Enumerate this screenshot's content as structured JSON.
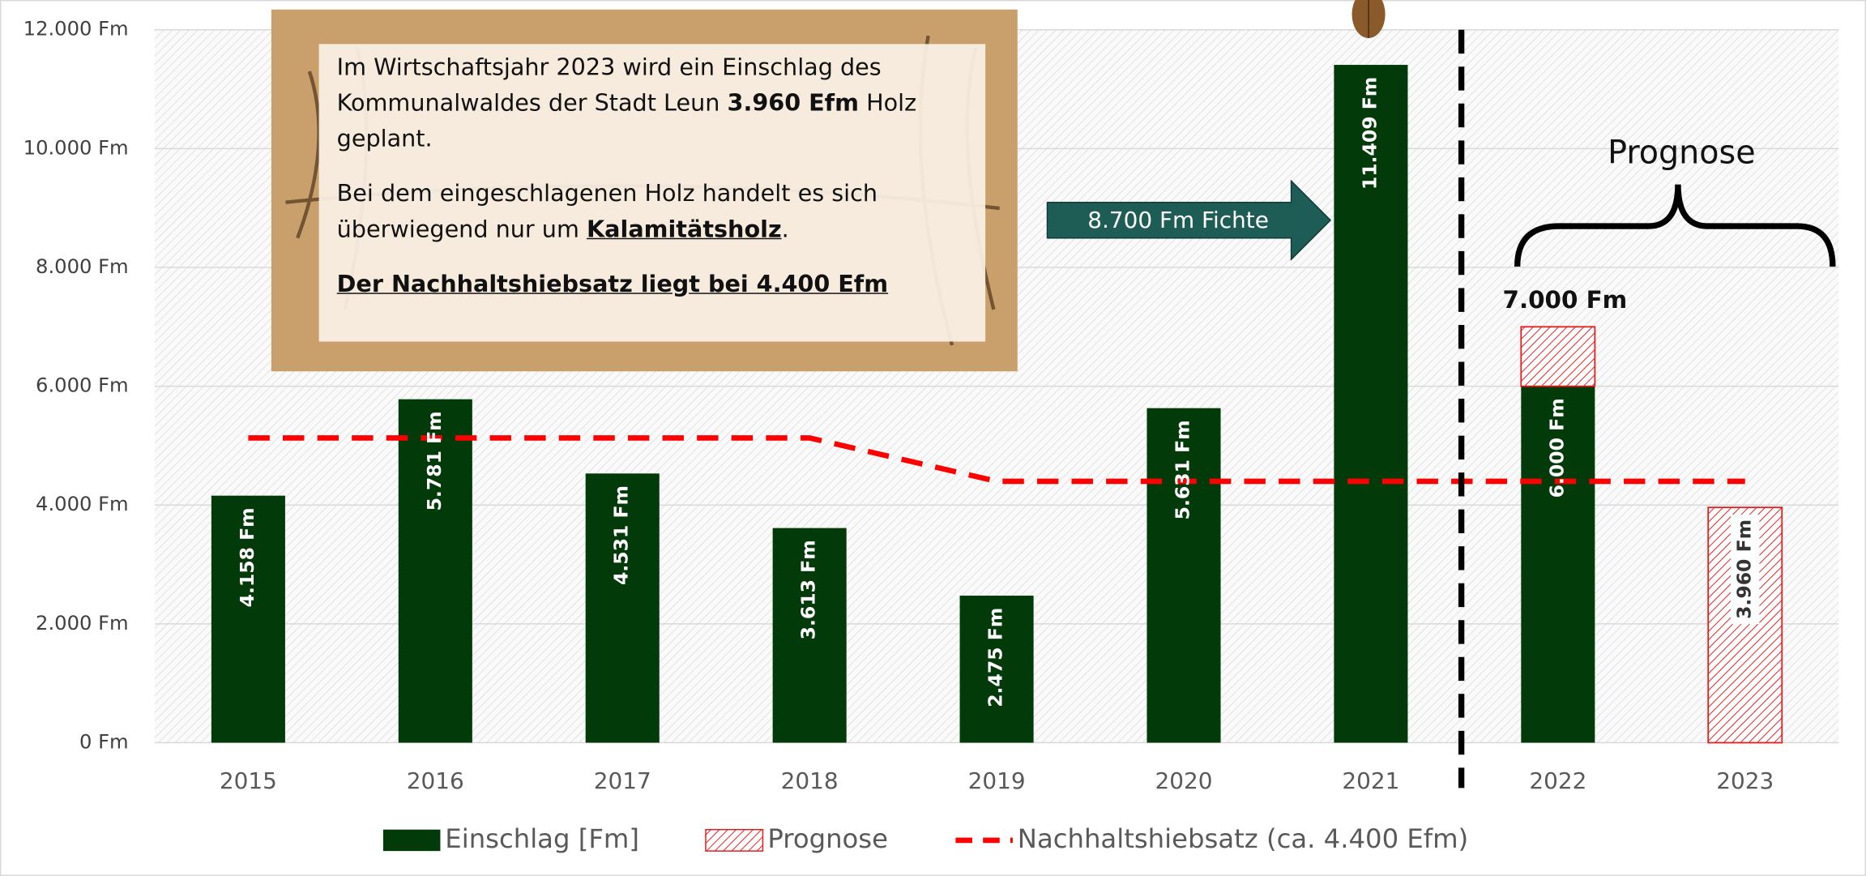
{
  "chart_data": {
    "type": "bar",
    "categories": [
      "2015",
      "2016",
      "2017",
      "2018",
      "2019",
      "2020",
      "2021",
      "2022",
      "2023"
    ],
    "series": [
      {
        "name": "Einschlag [Fm]",
        "type": "bar",
        "color": "#033a0a",
        "values": [
          4158,
          5781,
          4531,
          3613,
          2475,
          5631,
          11409,
          6000,
          null
        ],
        "value_labels": [
          "4.158 Fm",
          "5.781 Fm",
          "4.531 Fm",
          "3.613 Fm",
          "2.475 Fm",
          "5.631 Fm",
          "11.409 Fm",
          "6.000 Fm",
          null
        ]
      },
      {
        "name": "Prognose",
        "type": "bar",
        "color": "#e31b1b",
        "hatched": true,
        "values": [
          null,
          null,
          null,
          null,
          null,
          null,
          null,
          1000,
          3960
        ],
        "value_labels": [
          null,
          null,
          null,
          null,
          null,
          null,
          null,
          null,
          "3.960 Fm"
        ]
      },
      {
        "name": "Nachhaltshiebsatz (ca. 4.400 Efm)",
        "type": "line",
        "color": "#ff0000",
        "dashed": true,
        "values": [
          5130,
          5130,
          5130,
          5130,
          4400,
          4400,
          4400,
          4400,
          4400
        ]
      }
    ],
    "stacked": true,
    "ylim": [
      0,
      12000
    ],
    "yticks": [
      {
        "value": 0,
        "label": "0 Fm"
      },
      {
        "value": 2000,
        "label": "2.000 Fm"
      },
      {
        "value": 4000,
        "label": "4.000 Fm"
      },
      {
        "value": 6000,
        "label": "6.000 Fm"
      },
      {
        "value": 8000,
        "label": "8.000 Fm"
      },
      {
        "value": 10000,
        "label": "10.000 Fm"
      },
      {
        "value": 12000,
        "label": "12.000 Fm"
      }
    ],
    "grid": true,
    "legend": "bottom",
    "annotations": {
      "total_2022": "7.000 Fm",
      "arrow": "8.700 Fm Fichte",
      "brace": "Prognose",
      "textbox": [
        [
          {
            "text": "Im Wirtschaftsjahr 2023 wird ein Einschlag des Kommunalwaldes der Stadt Leun ",
            "style": "normal"
          },
          {
            "text": "3.960 Efm",
            "style": "bold"
          },
          {
            "text": " Holz geplant.",
            "style": "normal"
          }
        ],
        [
          {
            "text": "Bei dem eingeschlagenen Holz handelt es sich überwiegend nur um ",
            "style": "normal"
          },
          {
            "text": "Kalamitätsholz",
            "style": "bold-underline"
          },
          {
            "text": ".",
            "style": "normal"
          }
        ],
        [
          {
            "text": "Der Nachhaltshiebsatz liegt bei 4.400 Efm",
            "style": "bold-underline"
          }
        ]
      ]
    }
  }
}
